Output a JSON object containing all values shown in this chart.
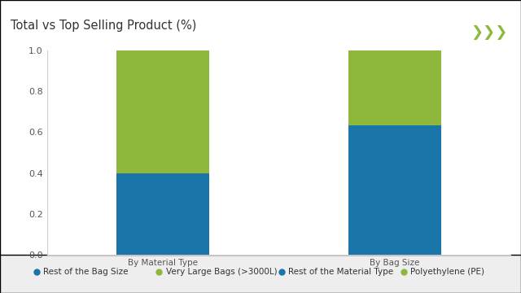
{
  "title": "Total vs Top Selling Product (%)",
  "categories": [
    "By Material Type",
    "By Bag Size"
  ],
  "bar_positions": [
    1,
    3
  ],
  "bar_width": 0.8,
  "bar1_values": [
    0.4,
    0.635
  ],
  "bar2_values": [
    0.6,
    0.365
  ],
  "blue_color": "#1a75a8",
  "green_color": "#8db83c",
  "legend_items": [
    {
      "label": "Rest of the Bag Size",
      "color": "#1a75a8"
    },
    {
      "label": "Very Large Bags (>3000L)",
      "color": "#8db83c"
    },
    {
      "label": "Rest of the Material Type",
      "color": "#1a75a8"
    },
    {
      "label": "Polyethylene (PE)",
      "color": "#8db83c"
    }
  ],
  "ylim": [
    0.0,
    1.0
  ],
  "yticks": [
    0.0,
    0.2,
    0.4,
    0.6,
    0.8,
    1.0
  ],
  "bg_color": "#eeeeee",
  "panel_color": "#ffffff",
  "title_fontsize": 10.5,
  "tick_fontsize": 8,
  "legend_fontsize": 7.5,
  "xlabel_fontsize": 7.5,
  "header_line_color": "#8db83c",
  "arrow_color": "#8db83c",
  "title_color": "#333333",
  "tick_color": "#555555"
}
